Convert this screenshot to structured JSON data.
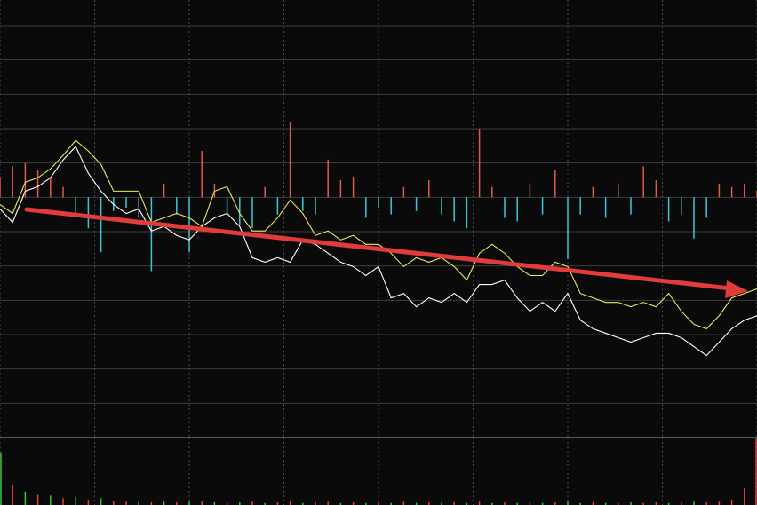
{
  "chart_data": [
    {
      "type": "line",
      "xlim": [
        0,
        240
      ],
      "xticks": [
        0,
        30,
        60,
        90,
        120,
        150,
        180,
        210,
        240
      ],
      "ylim": [
        -7,
        5.75
      ],
      "yticks": [
        -7,
        -6,
        -5,
        -4,
        -3,
        -2,
        -1,
        0,
        1,
        2,
        3,
        4,
        5
      ],
      "grid": true,
      "x": [
        0,
        4,
        8,
        12,
        16,
        20,
        24,
        28,
        32,
        36,
        40,
        44,
        48,
        52,
        56,
        60,
        64,
        68,
        72,
        76,
        80,
        84,
        88,
        92,
        96,
        100,
        104,
        108,
        112,
        116,
        120,
        124,
        128,
        132,
        136,
        140,
        144,
        148,
        152,
        156,
        160,
        164,
        168,
        172,
        176,
        180,
        184,
        188,
        192,
        196,
        200,
        204,
        208,
        212,
        216,
        220,
        224,
        228,
        232,
        236,
        240
      ],
      "series": [
        {
          "color": "#ffffff",
          "values": [
            -0.34,
            -0.73,
            0.18,
            0.31,
            0.57,
            1.09,
            1.48,
            0.7,
            0.18,
            -0.21,
            -0.47,
            -0.34,
            -0.98,
            -0.85,
            -1.11,
            -1.24,
            -0.85,
            -0.6,
            -0.47,
            -0.85,
            -1.76,
            -1.89,
            -1.76,
            -1.89,
            -1.24,
            -1.37,
            -1.63,
            -1.89,
            -2.02,
            -2.28,
            -2.02,
            -2.93,
            -2.8,
            -3.19,
            -2.93,
            -3.06,
            -2.8,
            -3.06,
            -2.54,
            -2.54,
            -2.41,
            -2.93,
            -3.32,
            -3.06,
            -3.32,
            -2.8,
            -3.58,
            -3.83,
            -3.96,
            -4.09,
            -4.22,
            -4.09,
            -3.96,
            -3.96,
            -4.09,
            -4.35,
            -4.61,
            -4.22,
            -3.83,
            -3.58,
            -3.45
          ]
        },
        {
          "color": "#e8e860",
          "values": [
            -0.21,
            -0.47,
            0.44,
            0.57,
            0.83,
            1.22,
            1.66,
            1.35,
            0.96,
            0.18,
            0.18,
            0.18,
            -0.73,
            -0.6,
            -0.47,
            -0.6,
            -0.85,
            0.18,
            0.31,
            -0.47,
            -0.98,
            -0.98,
            -0.6,
            -0.08,
            -0.47,
            -1.11,
            -0.98,
            -1.24,
            -1.11,
            -1.37,
            -1.37,
            -1.63,
            -2.02,
            -1.76,
            -1.89,
            -1.76,
            -2.02,
            -2.41,
            -1.63,
            -1.37,
            -1.63,
            -2.02,
            -2.28,
            -2.28,
            -1.89,
            -2.02,
            -2.8,
            -2.93,
            -3.06,
            -3.06,
            -3.19,
            -3.06,
            -3.19,
            -2.8,
            -3.32,
            -3.7,
            -3.83,
            -3.45,
            -2.93,
            -2.8,
            -2.67
          ]
        }
      ],
      "bars": {
        "up_color": "#e05a4a",
        "down_color": "#3cc8d8",
        "values": [
          0.6,
          0.9,
          1.0,
          0.8,
          0.6,
          0.3,
          -0.5,
          -0.9,
          -1.6,
          -0.4,
          -0.3,
          -0.6,
          -2.15,
          0.4,
          -0.5,
          -1.6,
          1.35,
          0.4,
          -0.5,
          -0.8,
          -0.9,
          0.3,
          -0.5,
          2.2,
          -0.4,
          -0.5,
          1.1,
          0.5,
          0.6,
          -0.6,
          -0.3,
          -0.5,
          0.3,
          -0.4,
          0.5,
          -0.5,
          -0.7,
          -0.9,
          2.0,
          0.3,
          -0.6,
          -0.7,
          0.4,
          -0.5,
          0.8,
          -1.8,
          -0.5,
          0.3,
          -0.6,
          0.4,
          -0.5,
          0.9,
          0.5,
          -0.7,
          -0.5,
          -1.2,
          -0.6,
          0.4,
          0.3,
          0.4,
          0.2
        ]
      }
    },
    {
      "type": "bar",
      "xlim": [
        0,
        240
      ],
      "xticks": [
        0,
        30,
        60,
        90,
        120,
        150,
        180,
        210,
        240
      ],
      "ylim": [
        0,
        100
      ],
      "x": [
        0,
        4,
        8,
        12,
        16,
        20,
        24,
        28,
        32,
        36,
        40,
        44,
        48,
        52,
        56,
        60,
        64,
        68,
        72,
        76,
        80,
        84,
        88,
        92,
        96,
        100,
        104,
        108,
        112,
        116,
        120,
        124,
        128,
        132,
        136,
        140,
        144,
        148,
        152,
        156,
        160,
        164,
        168,
        172,
        176,
        180,
        184,
        188,
        192,
        196,
        200,
        204,
        208,
        212,
        216,
        220,
        224,
        228,
        232,
        236,
        240
      ],
      "values": [
        78,
        30,
        20,
        15,
        14,
        10,
        12,
        8,
        10,
        6,
        5,
        6,
        4,
        5,
        4,
        5,
        6,
        4,
        3,
        4,
        5,
        3,
        4,
        6,
        3,
        4,
        5,
        3,
        4,
        3,
        4,
        3,
        5,
        3,
        4,
        3,
        4,
        3,
        5,
        3,
        4,
        3,
        4,
        3,
        4,
        5,
        3,
        4,
        3,
        3,
        4,
        3,
        4,
        3,
        4,
        5,
        4,
        5,
        8,
        25,
        98
      ],
      "colors": [
        "#40c040",
        "#e04040",
        "#40c040",
        "#e04040",
        "#40c040",
        "#e04040",
        "#40c040",
        "#e04040",
        "#40c040",
        "#e04040",
        "#e04040",
        "#40c040",
        "#e04040",
        "#40c040",
        "#e04040",
        "#40c040",
        "#e04040",
        "#40c040",
        "#e04040",
        "#40c040",
        "#e04040",
        "#40c040",
        "#e04040",
        "#e04040",
        "#40c040",
        "#e04040",
        "#e04040",
        "#40c040",
        "#e04040",
        "#40c040",
        "#e04040",
        "#40c040",
        "#e04040",
        "#40c040",
        "#e04040",
        "#40c040",
        "#e04040",
        "#40c040",
        "#e04040",
        "#40c040",
        "#e04040",
        "#40c040",
        "#e04040",
        "#40c040",
        "#e04040",
        "#40c040",
        "#40c040",
        "#e04040",
        "#40c040",
        "#e04040",
        "#40c040",
        "#e04040",
        "#e04040",
        "#40c040",
        "#e04040",
        "#40c040",
        "#e04040",
        "#e04040",
        "#e04040",
        "#e04040",
        "#e04040"
      ]
    }
  ]
}
